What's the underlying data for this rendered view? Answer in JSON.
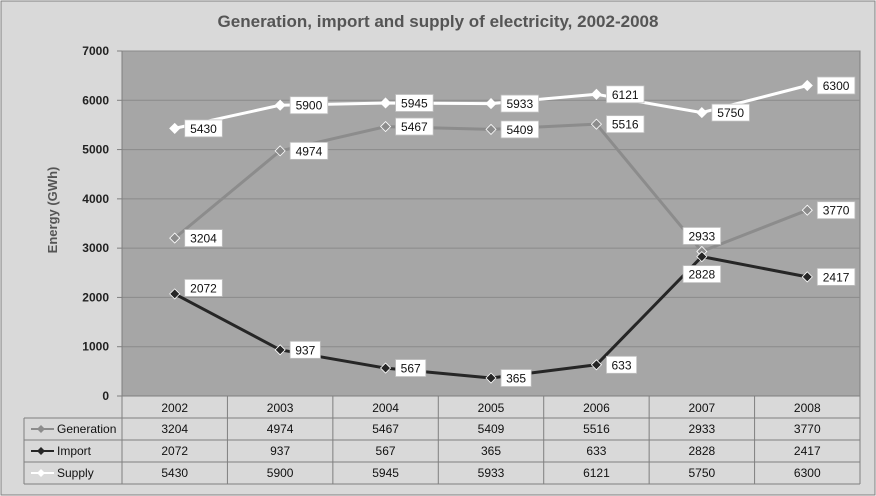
{
  "chart_data": {
    "type": "line",
    "title": "Generation, import and supply of electricity, 2002-2008",
    "ylabel": "Energy (GWh)",
    "xlabel": "",
    "ylim": [
      0,
      7000
    ],
    "yticks": [
      0,
      1000,
      2000,
      3000,
      4000,
      5000,
      6000,
      7000
    ],
    "categories": [
      "2002",
      "2003",
      "2004",
      "2005",
      "2006",
      "2007",
      "2008"
    ],
    "grid": true,
    "legend": "data-table",
    "series": [
      {
        "name": "Generation",
        "color": "#8c8c8c",
        "values": [
          3204,
          4974,
          5467,
          5409,
          5516,
          2933,
          3770
        ]
      },
      {
        "name": "Import",
        "color": "#262626",
        "values": [
          2072,
          937,
          567,
          365,
          633,
          2828,
          2417
        ]
      },
      {
        "name": "Supply",
        "color": "#ffffff",
        "values": [
          5430,
          5900,
          5945,
          5933,
          6121,
          5750,
          6300
        ]
      }
    ]
  },
  "colors": {
    "frame_background": "#d9d9d9",
    "plot_background": "#a6a6a6",
    "table_background": "#d9d9d9"
  }
}
